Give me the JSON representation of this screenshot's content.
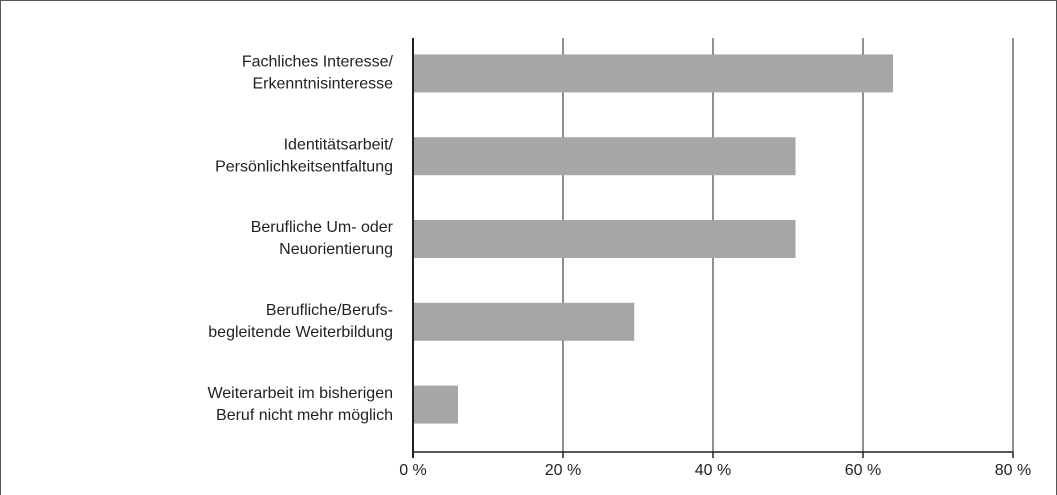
{
  "chart_data": {
    "type": "bar",
    "orientation": "horizontal",
    "categories": [
      [
        "Fachliches Interesse/",
        "Erkenntnisinteresse"
      ],
      [
        "Identitätsarbeit/",
        "Persönlichkeitsentfaltung"
      ],
      [
        "Berufliche Um- oder",
        "Neuorientierung"
      ],
      [
        "Berufliche/Berufs-",
        "begleitende Weiterbildung"
      ],
      [
        "Weiterarbeit im bisherigen",
        "Beruf nicht mehr möglich"
      ]
    ],
    "values": [
      64,
      51,
      51,
      29.5,
      6
    ],
    "color": "#a6a6a7",
    "xlim": [
      0,
      80
    ],
    "xticks": [
      {
        "value": 0,
        "label": "0 %"
      },
      {
        "value": 20,
        "label": "20 %"
      },
      {
        "value": 40,
        "label": "40 %"
      },
      {
        "value": 60,
        "label": "60 %"
      },
      {
        "value": 80,
        "label": "80 %"
      }
    ],
    "grid": true
  }
}
